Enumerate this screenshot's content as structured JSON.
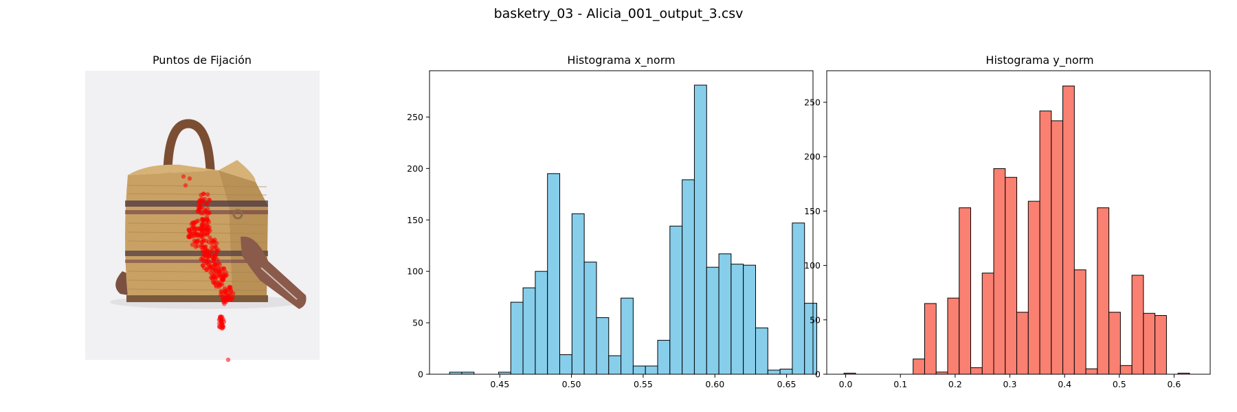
{
  "figure": {
    "suptitle": "basketry_03 - Alicia_001_output_3.csv"
  },
  "panel_image": {
    "title": "Puntos de Fijación",
    "image_semantic": "woven-basket-bag-photo",
    "fixation_color": "#ff0000"
  },
  "chart_data": [
    {
      "type": "bar",
      "title": "Histograma x_norm",
      "xlabel": "",
      "ylabel": "",
      "color": "#87ceeb",
      "edgecolor": "#000000",
      "bin_start": 0.415,
      "bin_width": 0.008535,
      "values": [
        2,
        2,
        0,
        0,
        2,
        70,
        84,
        100,
        195,
        19,
        156,
        109,
        55,
        18,
        74,
        8,
        8,
        33,
        144,
        189,
        281,
        104,
        117,
        107,
        106,
        45,
        4,
        5,
        147,
        69
      ],
      "xlim": [
        0.401,
        0.6684
      ],
      "ylim": [
        0,
        295
      ],
      "xticks": [
        0.45,
        0.5,
        0.55,
        0.6,
        0.65
      ],
      "xtick_labels": [
        "0.45",
        "0.50",
        "0.55",
        "0.60",
        "0.65"
      ],
      "yticks": [
        0,
        50,
        100,
        150,
        200,
        250
      ],
      "ytick_labels": [
        "0",
        "50",
        "100",
        "150",
        "200",
        "250"
      ],
      "grid": false,
      "legend": "none"
    },
    {
      "type": "bar",
      "title": "Histograma y_norm",
      "xlabel": "",
      "ylabel": "",
      "color": "#fa8072",
      "edgecolor": "#000000",
      "bin_start": -0.003,
      "bin_width": 0.02104,
      "values": [
        1,
        0,
        0,
        0,
        0,
        0,
        14,
        65,
        2,
        70,
        153,
        6,
        93,
        189,
        181,
        57,
        159,
        242,
        233,
        265,
        96,
        5,
        153,
        57,
        8,
        91,
        56,
        54,
        0,
        1
      ],
      "xlim": [
        -0.0346,
        0.666
      ],
      "ylim": [
        0,
        279
      ],
      "xticks": [
        0.0,
        0.1,
        0.2,
        0.3,
        0.4,
        0.5,
        0.6
      ],
      "xtick_labels": [
        "0.0",
        "0.1",
        "0.2",
        "0.3",
        "0.4",
        "0.5",
        "0.6"
      ],
      "yticks": [
        0,
        50,
        100,
        150,
        200,
        250
      ],
      "ytick_labels": [
        "0",
        "50",
        "100",
        "150",
        "200",
        "250"
      ],
      "grid": false,
      "legend": "none"
    }
  ]
}
